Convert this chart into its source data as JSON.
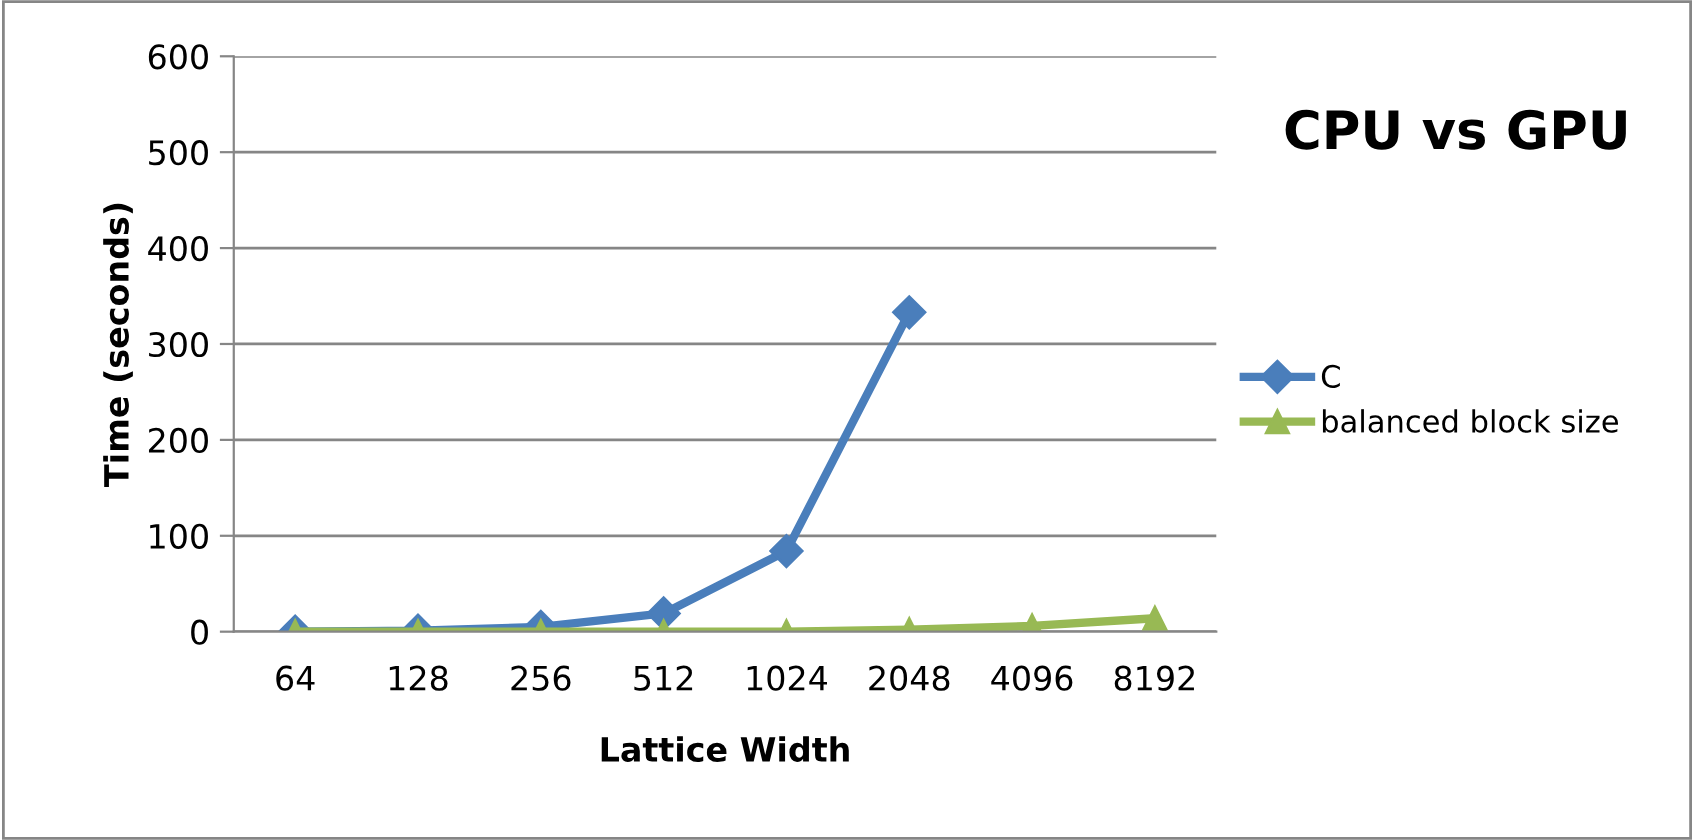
{
  "chart_data": {
    "type": "line",
    "title": "CPU vs GPU",
    "xlabel": "Lattice Width",
    "ylabel": "Time (seconds)",
    "categories": [
      "64",
      "128",
      "256",
      "512",
      "1024",
      "2048",
      "4096",
      "8192"
    ],
    "series": [
      {
        "name": "C",
        "color": "#4a7ebb",
        "marker": "diamond",
        "values": [
          0,
          1,
          5,
          19,
          84,
          333,
          null,
          null
        ]
      },
      {
        "name": "balanced block size",
        "color": "#98b954",
        "marker": "triangle",
        "values": [
          0,
          0,
          0,
          0,
          0,
          2,
          6,
          14
        ]
      }
    ],
    "ylim": [
      0,
      600
    ],
    "yticks": [
      0,
      100,
      200,
      300,
      400,
      500,
      600
    ],
    "grid": "y",
    "legend": "right"
  }
}
